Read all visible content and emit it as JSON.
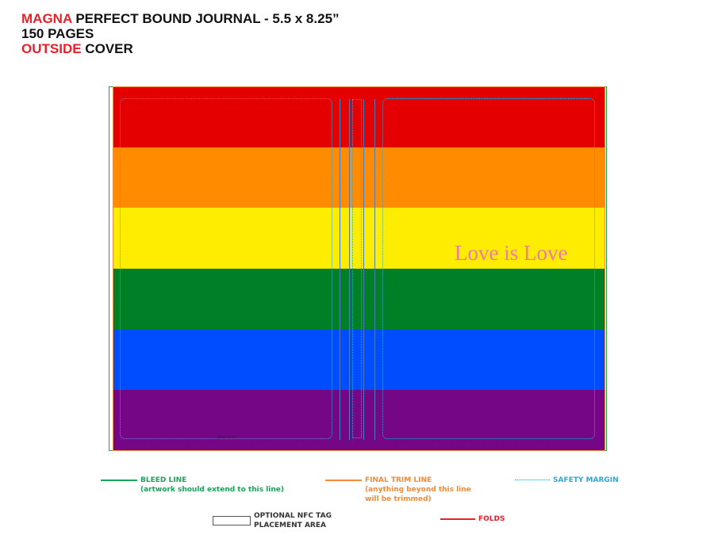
{
  "header": {
    "line1_red": "MAGNA",
    "line1_rest": " PERFECT BOUND JOURNAL - 5.5 x 8.25”",
    "line2": "150 PAGES",
    "line3_red": "OUTSIDE",
    "line3_rest": " COVER"
  },
  "cover": {
    "stripe_colors": [
      "#e40000",
      "#ff8c00",
      "#ffed00",
      "#008026",
      "#004dff",
      "#750787"
    ],
    "text": "Love is Love",
    "text_color": "#f07ab0",
    "spine_tag": "PAPERWORX"
  },
  "legend": {
    "bleed": {
      "title": "BLEED LINE",
      "sub": "(artwork should extend to this line)",
      "color": "#1aa35a"
    },
    "trim": {
      "title": "FINAL TRIM LINE",
      "sub1": "(anything beyond this line",
      "sub2": "will be trimmed)",
      "color": "#f48a3a"
    },
    "safety": {
      "title": "SAFETY MARGIN",
      "color": "#29a9e1"
    },
    "nfc": {
      "title1": "OPTIONAL NFC TAG",
      "title2": "PLACEMENT AREA"
    },
    "folds": {
      "title": "FOLDS",
      "color": "#e8202a"
    }
  }
}
